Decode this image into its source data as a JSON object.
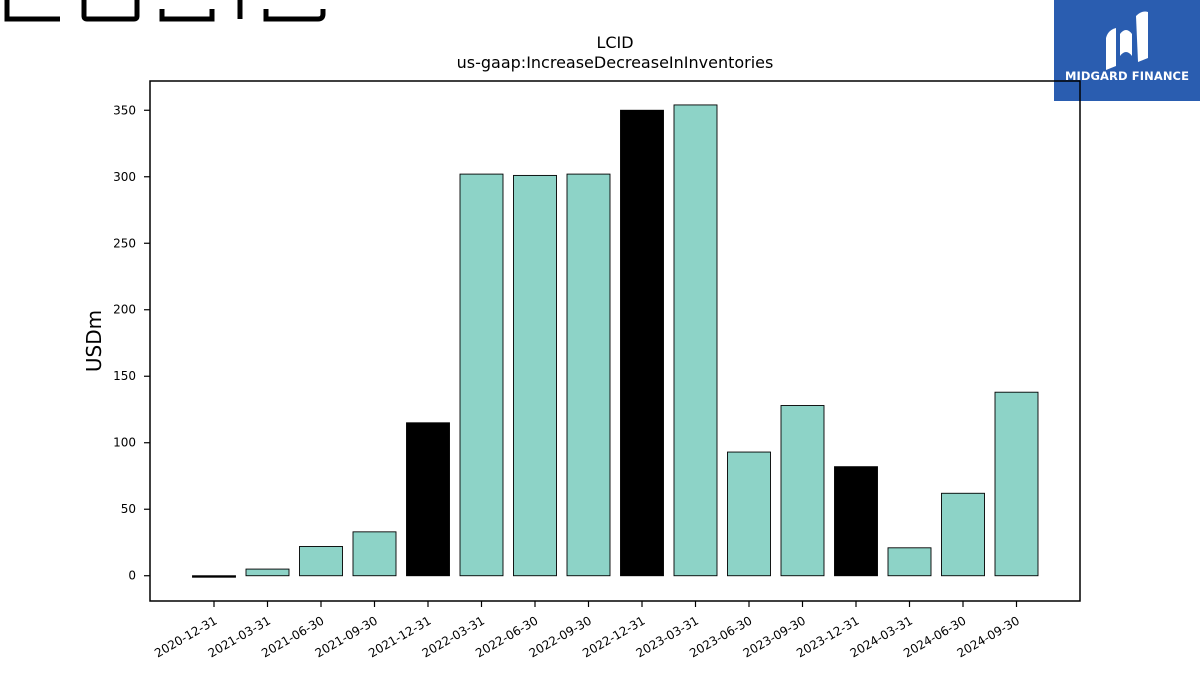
{
  "brand": {
    "name": "LUCID"
  },
  "badge": {
    "text": "MIDGARD FINANCE",
    "color": "#2a5db0"
  },
  "chart_data": {
    "type": "bar",
    "title": "LCID",
    "subtitle": "us-gaap:IncreaseDecreaseInInventories",
    "xlabel": "",
    "ylabel": "USDm",
    "ylim": [
      -19,
      372
    ],
    "yticks": [
      0,
      50,
      100,
      150,
      200,
      250,
      300,
      350
    ],
    "grid": false,
    "categories": [
      "2020-12-31",
      "2021-03-31",
      "2021-06-30",
      "2021-09-30",
      "2021-12-31",
      "2022-03-31",
      "2022-06-30",
      "2022-09-30",
      "2022-12-31",
      "2023-03-31",
      "2023-06-30",
      "2023-09-30",
      "2023-12-31",
      "2024-03-31",
      "2024-06-30",
      "2024-09-30"
    ],
    "values": [
      -1,
      5,
      22,
      33,
      115,
      302,
      301,
      302,
      350,
      354,
      93,
      128,
      82,
      21,
      62,
      138
    ],
    "colors": [
      "#000000",
      "#8dd3c7",
      "#8dd3c7",
      "#8dd3c7",
      "#000000",
      "#8dd3c7",
      "#8dd3c7",
      "#8dd3c7",
      "#000000",
      "#8dd3c7",
      "#8dd3c7",
      "#8dd3c7",
      "#000000",
      "#8dd3c7",
      "#8dd3c7",
      "#8dd3c7"
    ]
  }
}
